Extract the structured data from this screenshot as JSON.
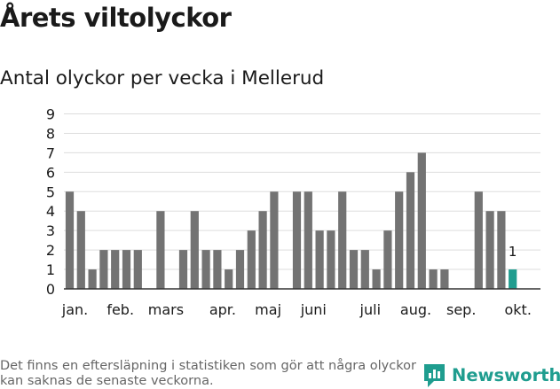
{
  "header": {
    "title": "Årets viltolyckor",
    "subtitle": "Antal olyckor per vecka i Mellerud"
  },
  "footer": {
    "note": "Det finns en eftersläpning i statistiken som gör att några olyckor kan saknas de senaste veckorna.",
    "brand": "Newsworthy"
  },
  "colors": {
    "bar": "#737373",
    "highlight": "#1f9d8f",
    "grid": "#dddddd",
    "axis": "#333333",
    "text": "#1a1a1a"
  },
  "chart_data": {
    "type": "bar",
    "title": "Antal olyckor per vecka i Mellerud",
    "xlabel": "",
    "ylabel": "",
    "ylim": [
      0,
      9
    ],
    "yticks": [
      0,
      1,
      2,
      3,
      4,
      5,
      6,
      7,
      8,
      9
    ],
    "grid": true,
    "weeks": [
      1,
      2,
      3,
      4,
      5,
      6,
      7,
      8,
      9,
      10,
      11,
      12,
      13,
      14,
      15,
      16,
      17,
      18,
      19,
      20,
      21,
      22,
      23,
      24,
      25,
      26,
      27,
      28,
      29,
      30,
      31,
      32,
      33,
      34,
      35,
      36,
      37,
      38,
      39,
      40
    ],
    "values": [
      5,
      4,
      1,
      2,
      2,
      2,
      2,
      0,
      4,
      0,
      2,
      4,
      2,
      2,
      1,
      2,
      3,
      4,
      5,
      0,
      5,
      5,
      3,
      3,
      5,
      2,
      2,
      1,
      3,
      5,
      6,
      7,
      1,
      1,
      0,
      0,
      5,
      4,
      4,
      1
    ],
    "highlight_index": 39,
    "highlight_label": "1",
    "month_labels": [
      {
        "label": "jan.",
        "week": 1.5
      },
      {
        "label": "feb.",
        "week": 5.5
      },
      {
        "label": "mars",
        "week": 9.5
      },
      {
        "label": "apr.",
        "week": 14.5
      },
      {
        "label": "maj",
        "week": 18.5
      },
      {
        "label": "juni",
        "week": 22.5
      },
      {
        "label": "juli",
        "week": 27.5
      },
      {
        "label": "aug.",
        "week": 31.5
      },
      {
        "label": "sep.",
        "week": 35.5
      },
      {
        "label": "okt.",
        "week": 40.5
      }
    ]
  }
}
